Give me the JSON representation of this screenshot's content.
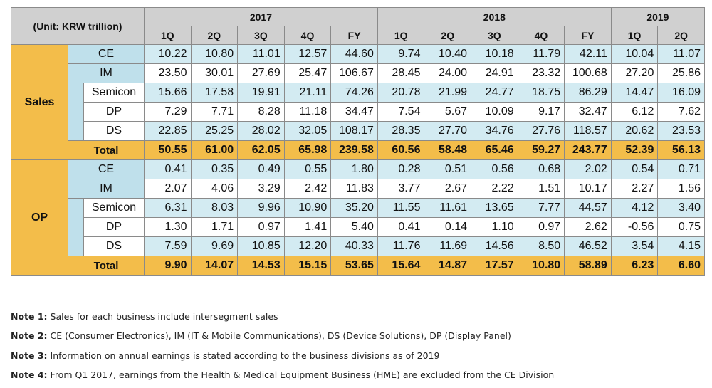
{
  "table": {
    "unit_label": "(Unit: KRW trillion)",
    "years": [
      {
        "label": "2017",
        "span": 5
      },
      {
        "label": "2018",
        "span": 5
      },
      {
        "label": "2019",
        "span": 2
      }
    ],
    "quarters": [
      "1Q",
      "2Q",
      "3Q",
      "4Q",
      "FY",
      "1Q",
      "2Q",
      "3Q",
      "4Q",
      "FY",
      "1Q",
      "2Q"
    ],
    "groups": [
      {
        "name": "Sales",
        "rows": [
          {
            "label": "CE",
            "level": 1,
            "values": [
              "10.22",
              "10.80",
              "11.01",
              "12.57",
              "44.60",
              "9.74",
              "10.40",
              "10.18",
              "11.79",
              "42.11",
              "10.04",
              "11.07"
            ]
          },
          {
            "label": "IM",
            "level": 1,
            "values": [
              "23.50",
              "30.01",
              "27.69",
              "25.47",
              "106.67",
              "28.45",
              "24.00",
              "24.91",
              "23.32",
              "100.68",
              "27.20",
              "25.86"
            ]
          },
          {
            "label": "Semicon",
            "level": 2,
            "values": [
              "15.66",
              "17.58",
              "19.91",
              "21.11",
              "74.26",
              "20.78",
              "21.99",
              "24.77",
              "18.75",
              "86.29",
              "14.47",
              "16.09"
            ]
          },
          {
            "label": "DP",
            "level": 2,
            "values": [
              "7.29",
              "7.71",
              "8.28",
              "11.18",
              "34.47",
              "7.54",
              "5.67",
              "10.09",
              "9.17",
              "32.47",
              "6.12",
              "7.62"
            ]
          },
          {
            "label": "DS",
            "level": 2,
            "values": [
              "22.85",
              "25.25",
              "28.02",
              "32.05",
              "108.17",
              "28.35",
              "27.70",
              "34.76",
              "27.76",
              "118.57",
              "20.62",
              "23.53"
            ]
          },
          {
            "label": "Total",
            "level": 0,
            "values": [
              "50.55",
              "61.00",
              "62.05",
              "65.98",
              "239.58",
              "60.56",
              "58.48",
              "65.46",
              "59.27",
              "243.77",
              "52.39",
              "56.13"
            ]
          }
        ]
      },
      {
        "name": "OP",
        "rows": [
          {
            "label": "CE",
            "level": 1,
            "values": [
              "0.41",
              "0.35",
              "0.49",
              "0.55",
              "1.80",
              "0.28",
              "0.51",
              "0.56",
              "0.68",
              "2.02",
              "0.54",
              "0.71"
            ]
          },
          {
            "label": "IM",
            "level": 1,
            "values": [
              "2.07",
              "4.06",
              "3.29",
              "2.42",
              "11.83",
              "3.77",
              "2.67",
              "2.22",
              "1.51",
              "10.17",
              "2.27",
              "1.56"
            ]
          },
          {
            "label": "Semicon",
            "level": 2,
            "values": [
              "6.31",
              "8.03",
              "9.96",
              "10.90",
              "35.20",
              "11.55",
              "11.61",
              "13.65",
              "7.77",
              "44.57",
              "4.12",
              "3.40"
            ]
          },
          {
            "label": "DP",
            "level": 2,
            "values": [
              "1.30",
              "1.71",
              "0.97",
              "1.41",
              "5.40",
              "0.41",
              "0.14",
              "1.10",
              "0.97",
              "2.62",
              "-0.56",
              "0.75"
            ]
          },
          {
            "label": "DS",
            "level": 2,
            "values": [
              "7.59",
              "9.69",
              "10.85",
              "12.20",
              "40.33",
              "11.76",
              "11.69",
              "14.56",
              "8.50",
              "46.52",
              "3.54",
              "4.15"
            ]
          },
          {
            "label": "Total",
            "level": 0,
            "values": [
              "9.90",
              "14.07",
              "14.53",
              "15.15",
              "53.65",
              "15.64",
              "14.87",
              "17.57",
              "10.80",
              "58.89",
              "6.23",
              "6.60"
            ]
          }
        ]
      }
    ]
  },
  "notes": [
    {
      "label": "Note 1:",
      "text": " Sales for each business include intersegment sales"
    },
    {
      "label": "Note 2:",
      "text": " CE (Consumer Electronics), IM (IT & Mobile Communications), DS (Device Solutions), DP (Display Panel)"
    },
    {
      "label": "Note 3:",
      "text": " Information on annual earnings is stated according to the business divisions as of 2019"
    },
    {
      "label": "Note 4:",
      "text": " From Q1 2017, earnings from the Health & Medical Equipment Business (HME) are excluded from the CE Division"
    }
  ],
  "colors": {
    "header_gray": "#d0d0d0",
    "group_gold": "#f3bd4a",
    "label_blue": "#bfe0eb",
    "row_blue": "#d3ebf2"
  }
}
